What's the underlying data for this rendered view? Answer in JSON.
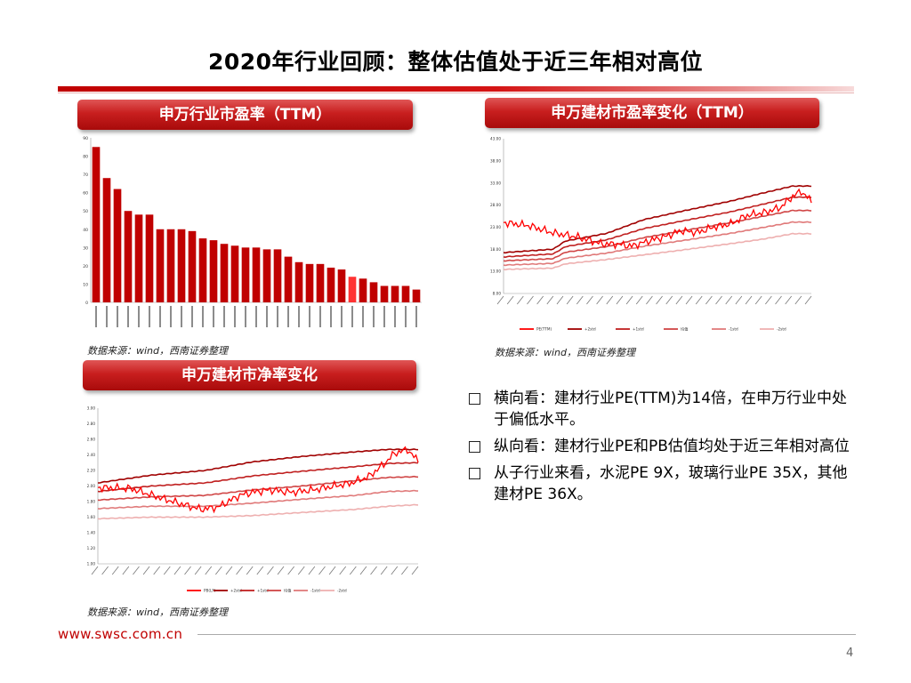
{
  "page": {
    "title": "2020年行业回顾：整体估值处于近三年相对高位",
    "footer_url": "www.swsc.com.cn",
    "page_number": "4",
    "accent_color": "#c00000"
  },
  "panels": {
    "pe_industry_title": "申万行业市盈率（TTM）",
    "pe_change_title": "申万建材市盈率变化（TTM）",
    "pb_change_title": "申万建材市净率变化",
    "source_1": "数据来源：wind，西南证券整理",
    "source_2": "数据来源：wind，西南证券整理",
    "source_3": "数据来源：wind，西南证券整理"
  },
  "bullets": [
    "横向看：建材行业PE(TTM)为14倍，在申万行业中处于偏低水平。",
    "纵向看：建材行业PE和PB估值均处于近三年相对高位",
    "从子行业来看，水泥PE 9X，玻璃行业PE 35X，其他建材PE 36X。"
  ],
  "chart_data": [
    {
      "id": "pe_industry",
      "type": "bar",
      "title": "申万行业市盈率（TTM）",
      "ylim": [
        0,
        90
      ],
      "yticks": [
        "0",
        "10",
        "20",
        "30",
        "40",
        "50",
        "60",
        "70",
        "80",
        "90"
      ],
      "values": [
        85,
        68,
        62,
        50,
        48,
        48,
        40,
        40,
        40,
        39,
        35,
        34,
        32,
        31,
        30,
        30,
        29,
        29,
        25,
        22,
        21,
        21,
        19,
        18,
        14,
        13,
        11,
        9,
        9,
        9,
        7
      ],
      "highlight_index": 24,
      "colors": {
        "normal": "#c00000",
        "highlight": "#ff3333"
      }
    },
    {
      "id": "pe_change",
      "type": "line",
      "title": "申万建材市盈率变化（TTM）",
      "ylim": [
        8,
        44
      ],
      "yticks": [
        "8.00",
        "13.00",
        "18.00",
        "23.00",
        "28.00",
        "33.00",
        "38.00",
        "43.00"
      ],
      "n_points": 150,
      "legend": [
        "PE(TTM)",
        "+2std",
        "+1std",
        "均值",
        "-1std",
        "-2std"
      ],
      "series": [
        {
          "name": "PE(TTM)",
          "color": "#ff0000",
          "anchors": [
            [
              0,
              24.5
            ],
            [
              12,
              23.8
            ],
            [
              24,
              22.1
            ],
            [
              36,
              21.1
            ],
            [
              48,
              19.5
            ],
            [
              55,
              19.5
            ],
            [
              62,
              19.0
            ],
            [
              70,
              20.2
            ],
            [
              78,
              21.2
            ],
            [
              86,
              22.6
            ],
            [
              94,
              22.2
            ],
            [
              102,
              23.5
            ],
            [
              110,
              24.2
            ],
            [
              118,
              26.2
            ],
            [
              126,
              26.8
            ],
            [
              134,
              28.0
            ],
            [
              140,
              30.6
            ],
            [
              144,
              31.8
            ],
            [
              149,
              29.4
            ]
          ]
        },
        {
          "name": "+2std",
          "color": "#a00000",
          "anchors": [
            [
              0,
              17.5
            ],
            [
              24,
              18.3
            ],
            [
              30,
              20.2
            ],
            [
              50,
              22.0
            ],
            [
              68,
              25.2
            ],
            [
              88,
              27.3
            ],
            [
              110,
              29.5
            ],
            [
              125,
              31.3
            ],
            [
              140,
              33.0
            ],
            [
              149,
              33.0
            ]
          ]
        },
        {
          "name": "+1std",
          "color": "#c02020",
          "anchors": [
            [
              0,
              16.5
            ],
            [
              24,
              17.2
            ],
            [
              30,
              18.9
            ],
            [
              50,
              20.5
            ],
            [
              68,
              23.1
            ],
            [
              88,
              25.0
            ],
            [
              110,
              27.0
            ],
            [
              125,
              28.7
            ],
            [
              140,
              30.4
            ],
            [
              149,
              30.4
            ]
          ]
        },
        {
          "name": "均值",
          "color": "#d04545",
          "anchors": [
            [
              0,
              15.6
            ],
            [
              24,
              16.1
            ],
            [
              30,
              17.6
            ],
            [
              50,
              18.9
            ],
            [
              68,
              21.0
            ],
            [
              88,
              22.7
            ],
            [
              110,
              24.5
            ],
            [
              125,
              25.9
            ],
            [
              140,
              27.3
            ],
            [
              149,
              27.3
            ]
          ]
        },
        {
          "name": "-1std",
          "color": "#e07a7a",
          "anchors": [
            [
              0,
              14.6
            ],
            [
              24,
              15.0
            ],
            [
              30,
              16.2
            ],
            [
              50,
              17.4
            ],
            [
              68,
              19.0
            ],
            [
              88,
              20.4
            ],
            [
              110,
              22.0
            ],
            [
              125,
              23.3
            ],
            [
              140,
              24.6
            ],
            [
              149,
              24.6
            ]
          ]
        },
        {
          "name": "-2std",
          "color": "#eeb0b0",
          "anchors": [
            [
              0,
              13.6
            ],
            [
              24,
              13.9
            ],
            [
              30,
              14.9
            ],
            [
              50,
              15.9
            ],
            [
              68,
              17.0
            ],
            [
              88,
              18.2
            ],
            [
              110,
              19.6
            ],
            [
              125,
              20.6
            ],
            [
              140,
              21.9
            ],
            [
              149,
              21.9
            ]
          ]
        }
      ]
    },
    {
      "id": "pb_change",
      "type": "line",
      "title": "申万建材市净率变化",
      "ylim": [
        1.0,
        3.0
      ],
      "yticks": [
        "1.00",
        "1.20",
        "1.40",
        "1.60",
        "1.80",
        "2.00",
        "2.20",
        "2.40",
        "2.60",
        "2.80",
        "3.00"
      ],
      "n_points": 150,
      "legend": [
        "PB(LF)",
        "+2std",
        "+1std",
        "均值",
        "-1std",
        "-2std"
      ],
      "series": [
        {
          "name": "PB(LF)",
          "color": "#ff0000",
          "anchors": [
            [
              0,
              1.98
            ],
            [
              15,
              1.97
            ],
            [
              30,
              1.84
            ],
            [
              40,
              1.76
            ],
            [
              48,
              1.7
            ],
            [
              56,
              1.73
            ],
            [
              66,
              1.88
            ],
            [
              72,
              1.92
            ],
            [
              80,
              1.95
            ],
            [
              90,
              1.92
            ],
            [
              100,
              1.95
            ],
            [
              110,
              2.0
            ],
            [
              118,
              2.04
            ],
            [
              126,
              2.12
            ],
            [
              133,
              2.28
            ],
            [
              138,
              2.42
            ],
            [
              144,
              2.47
            ],
            [
              149,
              2.32
            ]
          ]
        },
        {
          "name": "+2std",
          "color": "#a00000",
          "anchors": [
            [
              0,
              2.04
            ],
            [
              25,
              2.14
            ],
            [
              50,
              2.2
            ],
            [
              72,
              2.31
            ],
            [
              95,
              2.38
            ],
            [
              120,
              2.44
            ],
            [
              135,
              2.47
            ],
            [
              149,
              2.47
            ]
          ]
        },
        {
          "name": "+1std",
          "color": "#c02020",
          "anchors": [
            [
              0,
              1.93
            ],
            [
              25,
              2.0
            ],
            [
              50,
              2.04
            ],
            [
              72,
              2.13
            ],
            [
              95,
              2.19
            ],
            [
              120,
              2.25
            ],
            [
              135,
              2.29
            ],
            [
              149,
              2.3
            ]
          ]
        },
        {
          "name": "均值",
          "color": "#d04545",
          "anchors": [
            [
              0,
              1.82
            ],
            [
              25,
              1.86
            ],
            [
              50,
              1.88
            ],
            [
              72,
              1.95
            ],
            [
              95,
              2.0
            ],
            [
              120,
              2.07
            ],
            [
              135,
              2.11
            ],
            [
              149,
              2.12
            ]
          ]
        },
        {
          "name": "-1std",
          "color": "#e07a7a",
          "anchors": [
            [
              0,
              1.71
            ],
            [
              25,
              1.74
            ],
            [
              50,
              1.74
            ],
            [
              72,
              1.78
            ],
            [
              95,
              1.83
            ],
            [
              120,
              1.88
            ],
            [
              135,
              1.93
            ],
            [
              149,
              1.94
            ]
          ]
        },
        {
          "name": "-2std",
          "color": "#eeb0b0",
          "anchors": [
            [
              0,
              1.58
            ],
            [
              25,
              1.6
            ],
            [
              50,
              1.6
            ],
            [
              72,
              1.62
            ],
            [
              95,
              1.66
            ],
            [
              120,
              1.7
            ],
            [
              135,
              1.74
            ],
            [
              149,
              1.76
            ]
          ]
        }
      ]
    }
  ]
}
